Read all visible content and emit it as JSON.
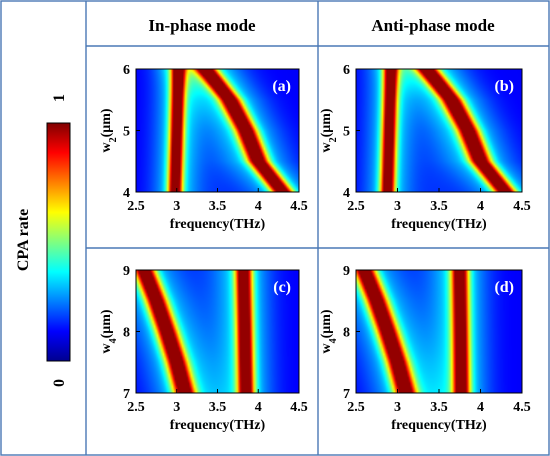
{
  "headers": {
    "left": "In-phase mode",
    "right": "Anti-phase mode"
  },
  "colorbar": {
    "label": "CPA rate",
    "min_label": "0",
    "max_label": "1",
    "range": [
      0,
      1
    ],
    "colormap": "jet"
  },
  "chart_data": [
    {
      "type": "heatmap",
      "panel": "(a)",
      "mode": "In-phase mode",
      "xlabel": "frequency(THz)",
      "ylabel": {
        "main": "w",
        "sub": "2",
        "unit": "(μm)"
      },
      "xlim": [
        2.5,
        4.5
      ],
      "ylim": [
        4,
        6
      ],
      "xticks": [
        "2.5",
        "3",
        "3.5",
        "4",
        "4.5"
      ],
      "yticks": [
        "4",
        "5",
        "6"
      ],
      "ridges": [
        {
          "y": [
            4,
            6
          ],
          "x": [
            2.98,
            3.02
          ],
          "width": 0.06
        },
        {
          "y": [
            4,
            4.5,
            5,
            5.5,
            6
          ],
          "x": [
            4.3,
            4.0,
            3.85,
            3.65,
            3.35
          ],
          "width": 0.09
        }
      ]
    },
    {
      "type": "heatmap",
      "panel": "(b)",
      "mode": "Anti-phase mode",
      "xlabel": "frequency(THz)",
      "ylabel": {
        "main": "w",
        "sub": "2",
        "unit": "(μm)"
      },
      "xlim": [
        2.5,
        4.5
      ],
      "ylim": [
        4,
        6
      ],
      "xticks": [
        "2.5",
        "3",
        "3.5",
        "4",
        "4.5"
      ],
      "yticks": [
        "4",
        "5",
        "6"
      ],
      "ridges": [
        {
          "y": [
            4,
            6
          ],
          "x": [
            2.88,
            2.92
          ],
          "width": 0.06
        },
        {
          "y": [
            4,
            4.5,
            5,
            5.5,
            6
          ],
          "x": [
            4.3,
            4.0,
            3.85,
            3.65,
            3.35
          ],
          "width": 0.09
        }
      ]
    },
    {
      "type": "heatmap",
      "panel": "(c)",
      "mode": "In-phase mode",
      "xlabel": "frequency(THz)",
      "ylabel": {
        "main": "w",
        "sub": "4",
        "unit": "(μm)"
      },
      "xlim": [
        2.5,
        4.5
      ],
      "ylim": [
        7,
        9
      ],
      "xticks": [
        "2.5",
        "3",
        "3.5",
        "4",
        "4.5"
      ],
      "yticks": [
        "7",
        "8",
        "9"
      ],
      "ridges": [
        {
          "y": [
            7,
            7.5,
            8,
            8.5,
            9
          ],
          "x": [
            3.1,
            3.0,
            2.88,
            2.75,
            2.6
          ],
          "width": 0.09
        },
        {
          "y": [
            7,
            9
          ],
          "x": [
            3.85,
            3.82
          ],
          "width": 0.07
        }
      ]
    },
    {
      "type": "heatmap",
      "panel": "(d)",
      "mode": "Anti-phase mode",
      "xlabel": "frequency(THz)",
      "ylabel": {
        "main": "w",
        "sub": "4",
        "unit": "(μm)"
      },
      "xlim": [
        2.5,
        4.5
      ],
      "ylim": [
        7,
        9
      ],
      "xticks": [
        "2.5",
        "3",
        "3.5",
        "4",
        "4.5"
      ],
      "yticks": [
        "7",
        "8",
        "9"
      ],
      "ridges": [
        {
          "y": [
            7,
            7.5,
            8,
            8.5,
            9
          ],
          "x": [
            3.1,
            3.0,
            2.88,
            2.75,
            2.6
          ],
          "width": 0.09
        },
        {
          "y": [
            7,
            9
          ],
          "x": [
            3.77,
            3.75
          ],
          "width": 0.07
        }
      ]
    }
  ]
}
